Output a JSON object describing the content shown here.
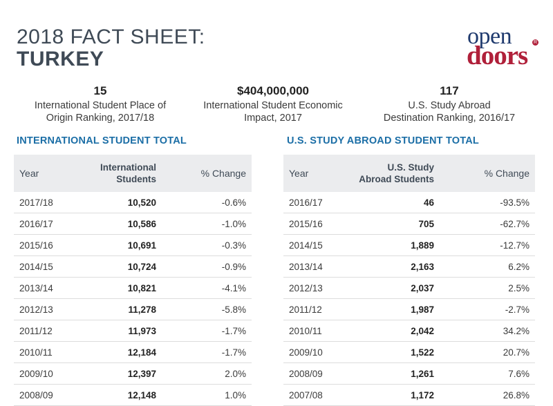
{
  "title": {
    "line1": "2018 FACT SHEET:",
    "line2": "TURKEY"
  },
  "logo": {
    "open": "open",
    "doors": "doors",
    "reg": "R"
  },
  "stats": [
    {
      "value": "15",
      "label_line1": "International Student Place of",
      "label_line2": "Origin Ranking, 2017/18"
    },
    {
      "value": "$404,000,000",
      "label_line1": "International Student Economic",
      "label_line2": "Impact, 2017"
    },
    {
      "value": "117",
      "label_line1": "U.S. Study Abroad",
      "label_line2": "Destination Ranking, 2016/17"
    }
  ],
  "intl": {
    "section_title": "INTERNATIONAL STUDENT TOTAL",
    "headers": {
      "year": "Year",
      "count_line1": "International",
      "count_line2": "Students",
      "change": "% Change"
    },
    "rows": [
      {
        "year": "2017/18",
        "count": "10,520",
        "change": "-0.6%"
      },
      {
        "year": "2016/17",
        "count": "10,586",
        "change": "-1.0%"
      },
      {
        "year": "2015/16",
        "count": "10,691",
        "change": "-0.3%"
      },
      {
        "year": "2014/15",
        "count": "10,724",
        "change": "-0.9%"
      },
      {
        "year": "2013/14",
        "count": "10,821",
        "change": "-4.1%"
      },
      {
        "year": "2012/13",
        "count": "11,278",
        "change": "-5.8%"
      },
      {
        "year": "2011/12",
        "count": "11,973",
        "change": "-1.7%"
      },
      {
        "year": "2010/11",
        "count": "12,184",
        "change": "-1.7%"
      },
      {
        "year": "2009/10",
        "count": "12,397",
        "change": "2.0%"
      },
      {
        "year": "2008/09",
        "count": "12,148",
        "change": "1.0%"
      }
    ]
  },
  "abroad": {
    "section_title": "U.S. STUDY ABROAD STUDENT TOTAL",
    "headers": {
      "year": "Year",
      "count_line1": "U.S. Study",
      "count_line2": "Abroad Students",
      "change": "% Change"
    },
    "rows": [
      {
        "year": "2016/17",
        "count": "46",
        "change": "-93.5%"
      },
      {
        "year": "2015/16",
        "count": "705",
        "change": "-62.7%"
      },
      {
        "year": "2014/15",
        "count": "1,889",
        "change": "-12.7%"
      },
      {
        "year": "2013/14",
        "count": "2,163",
        "change": "6.2%"
      },
      {
        "year": "2012/13",
        "count": "2,037",
        "change": "2.5%"
      },
      {
        "year": "2011/12",
        "count": "1,987",
        "change": "-2.7%"
      },
      {
        "year": "2010/11",
        "count": "2,042",
        "change": "34.2%"
      },
      {
        "year": "2009/10",
        "count": "1,522",
        "change": "20.7%"
      },
      {
        "year": "2008/09",
        "count": "1,261",
        "change": "7.6%"
      },
      {
        "year": "2007/08",
        "count": "1,172",
        "change": "26.8%"
      }
    ]
  }
}
